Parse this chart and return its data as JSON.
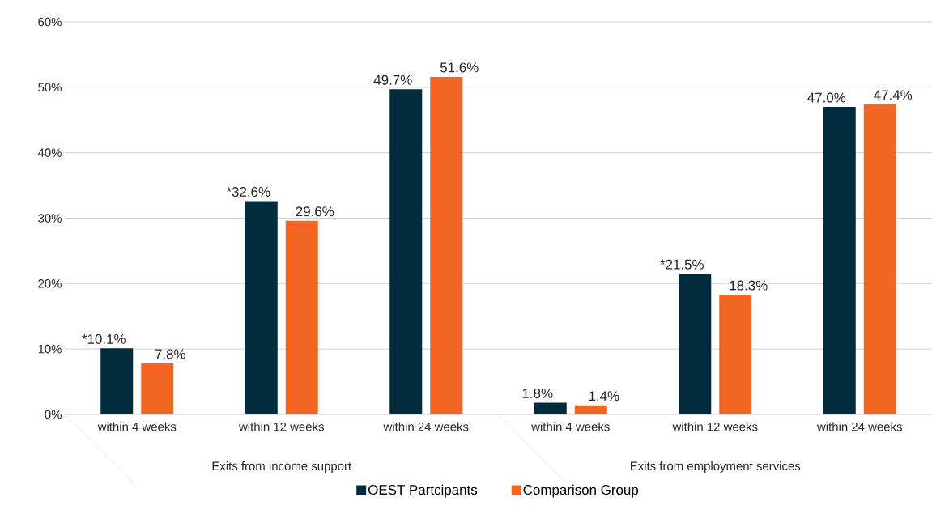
{
  "chart_data": {
    "type": "bar",
    "categories": [
      "within 4 weeks",
      "within 12 weeks",
      "within 24 weeks",
      "within 4 weeks",
      "within 12 weeks",
      "within 24 weeks"
    ],
    "series": [
      {
        "name": "OEST Partcipants",
        "color": "#022b3e",
        "values": [
          10.1,
          32.6,
          49.7,
          1.8,
          21.5,
          47.0
        ],
        "value_labels": [
          "*10.1%",
          "*32.6%",
          "49.7%",
          "1.8%",
          "*21.5%",
          "47.0%"
        ]
      },
      {
        "name": "Comparison Group",
        "color": "#f26522",
        "values": [
          7.8,
          29.6,
          51.6,
          1.4,
          18.3,
          47.4
        ],
        "value_labels": [
          "7.8%",
          "29.6%",
          "51.6%",
          "1.4%",
          "18.3%",
          "47.4%"
        ]
      }
    ],
    "ylim": [
      0,
      60
    ],
    "yticks": [
      {
        "value": 0,
        "label": "0%"
      },
      {
        "value": 10,
        "label": "10%"
      },
      {
        "value": 20,
        "label": "20%"
      },
      {
        "value": 30,
        "label": "30%"
      },
      {
        "value": 40,
        "label": "40%"
      },
      {
        "value": 50,
        "label": "50%"
      },
      {
        "value": 60,
        "label": "60%"
      }
    ],
    "annotations": [
      "Exits from income support",
      "Exits from employment services"
    ],
    "grid": "y",
    "legend": "bottom"
  }
}
